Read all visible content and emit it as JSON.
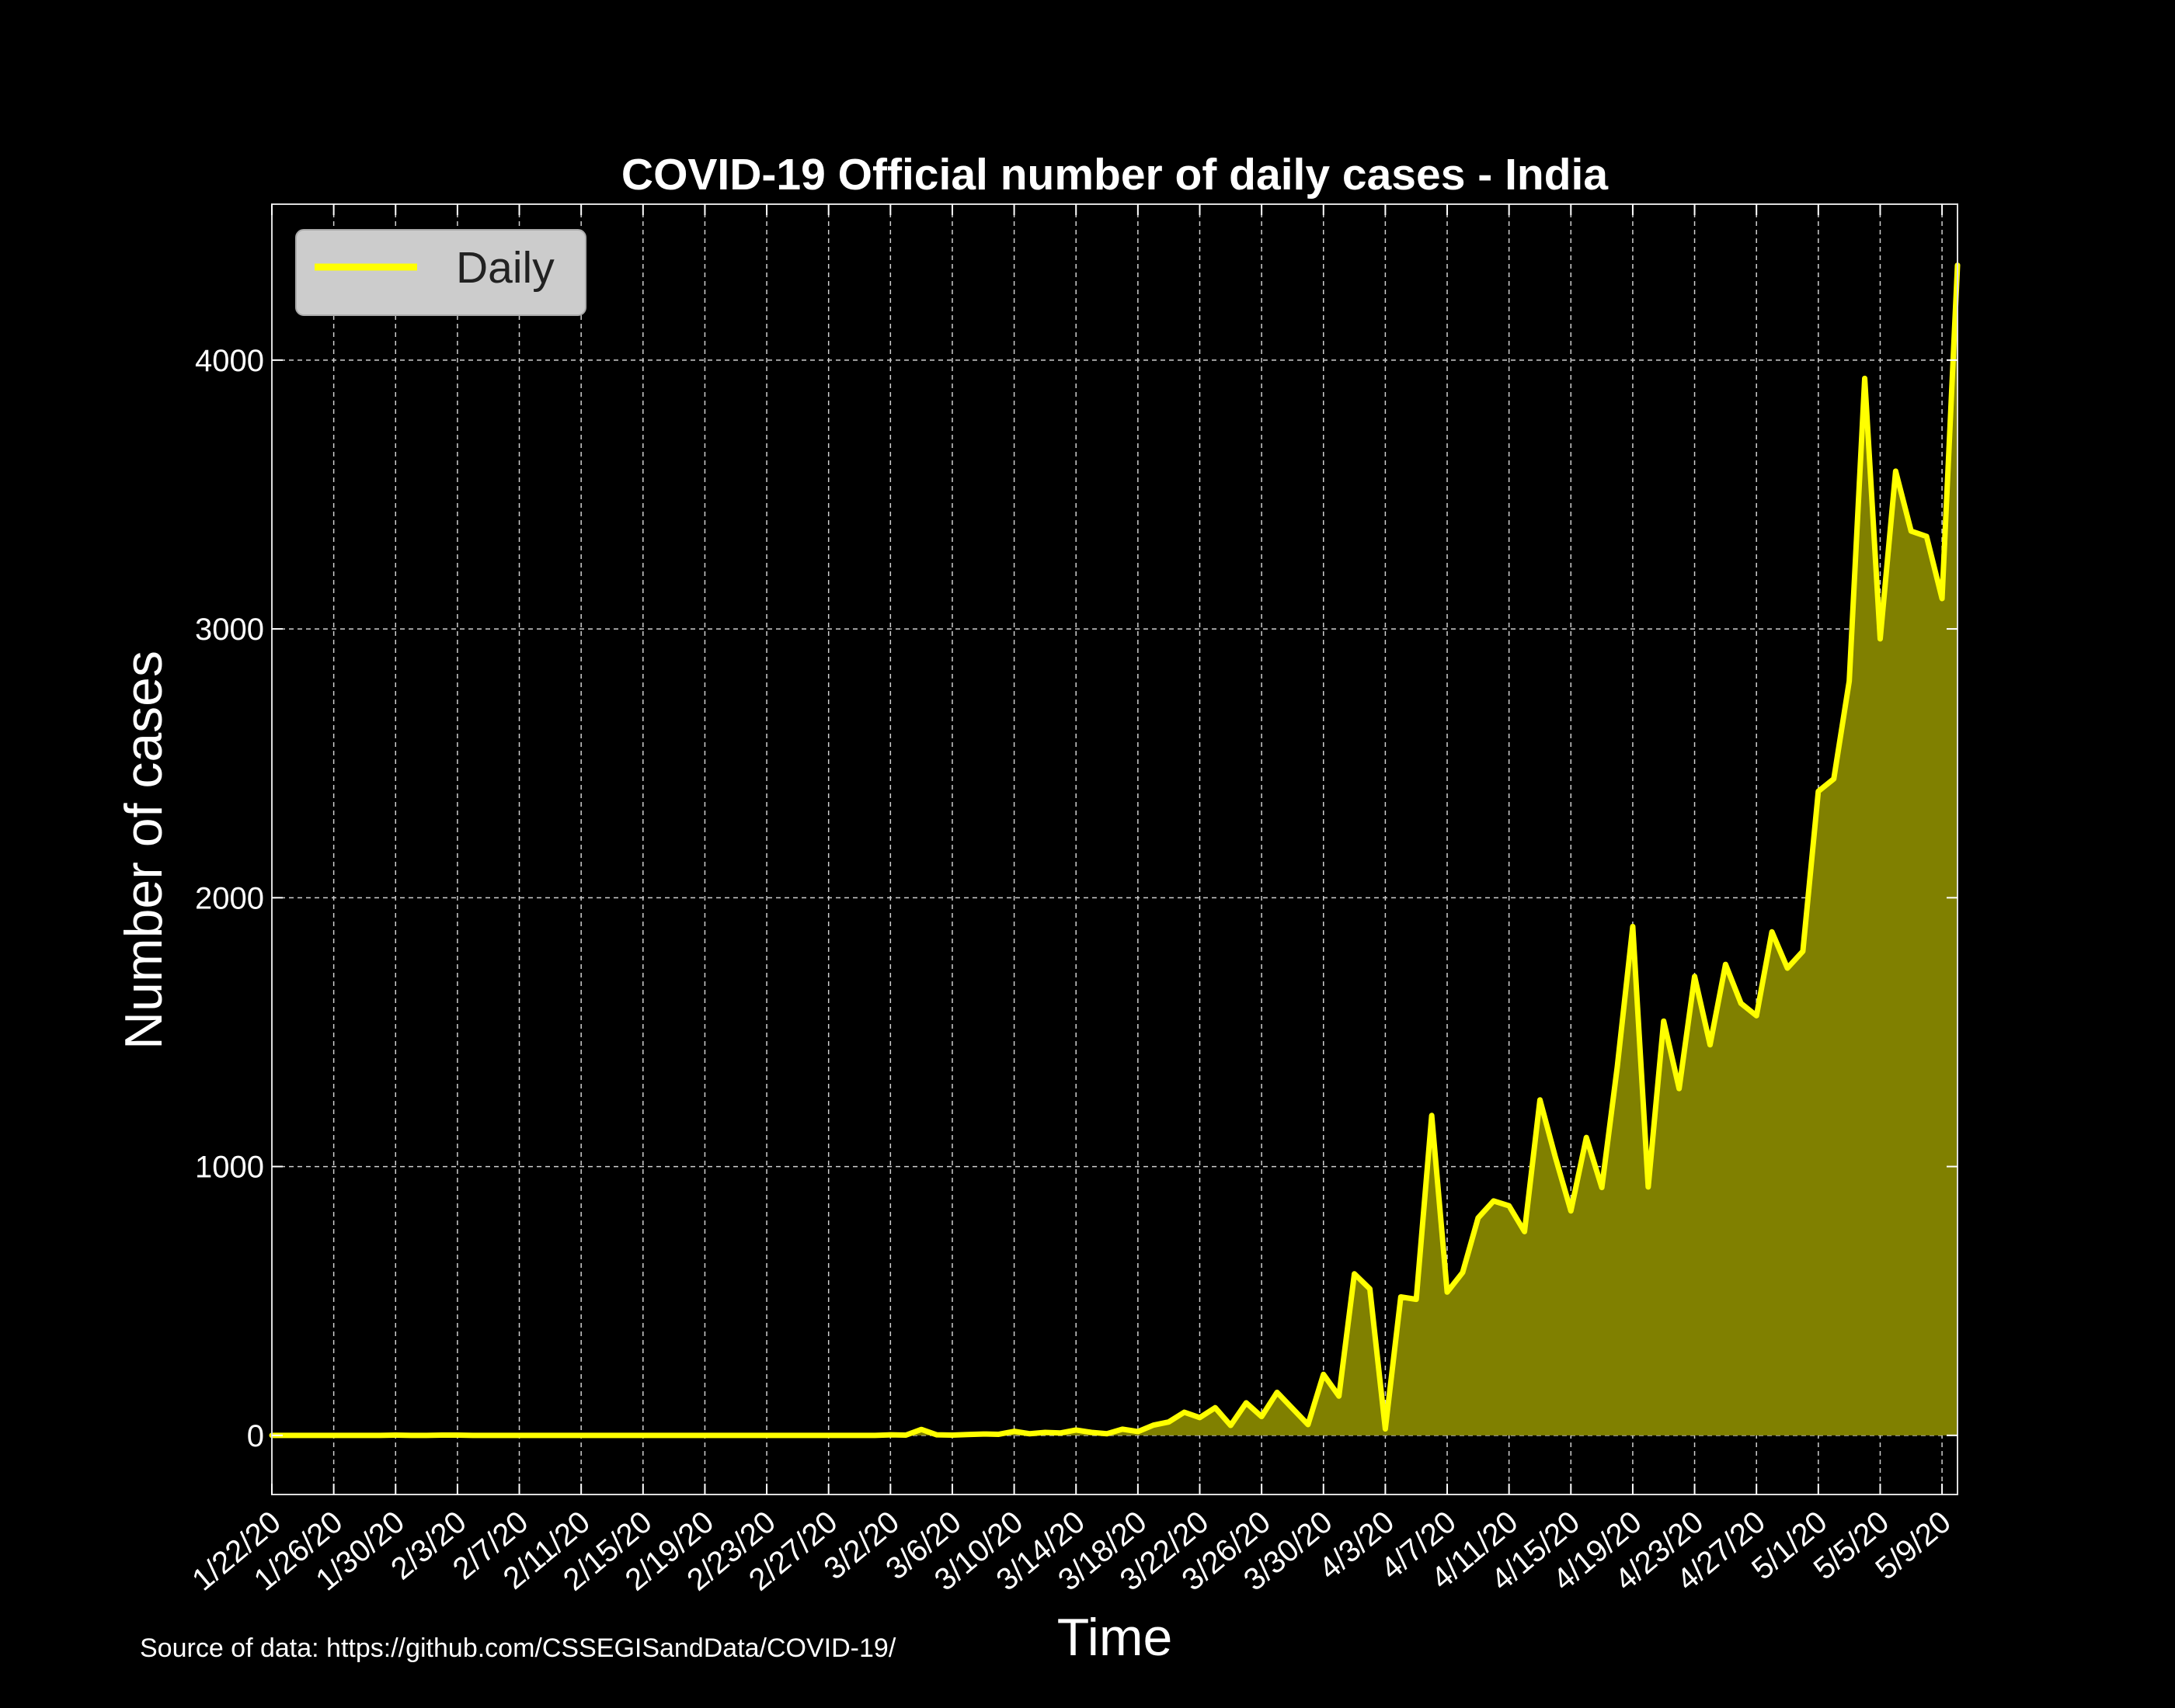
{
  "chart_data": {
    "type": "area",
    "title": "COVID-19 Official number of daily cases - India",
    "xlabel": "Time",
    "ylabel": "Number of cases",
    "source_note": "Source of data: https://github.com/CSSEGISandData/COVID-19/",
    "x_range": [
      "1/22/20",
      "5/9/20"
    ],
    "ylim": [
      -220,
      4580
    ],
    "y_ticks": [
      0,
      1000,
      2000,
      3000,
      4000
    ],
    "x_tick_labels": [
      "1/22/20",
      "1/26/20",
      "1/30/20",
      "2/3/20",
      "2/7/20",
      "2/11/20",
      "2/15/20",
      "2/19/20",
      "2/23/20",
      "2/27/20",
      "3/2/20",
      "3/6/20",
      "3/10/20",
      "3/14/20",
      "3/18/20",
      "3/22/20",
      "3/26/20",
      "3/30/20",
      "4/3/20",
      "4/7/20",
      "4/11/20",
      "4/15/20",
      "4/19/20",
      "4/23/20",
      "4/27/20",
      "5/1/20",
      "5/5/20",
      "5/9/20"
    ],
    "grid": true,
    "legend_position": "top-left",
    "series": [
      {
        "name": "Daily",
        "color": "#ffff00",
        "fill_color": "#808000",
        "points": [
          [
            "1/22/20",
            0
          ],
          [
            "1/23/20",
            0
          ],
          [
            "1/24/20",
            0
          ],
          [
            "1/25/20",
            0
          ],
          [
            "1/26/20",
            0
          ],
          [
            "1/27/20",
            0
          ],
          [
            "1/28/20",
            0
          ],
          [
            "1/29/20",
            0
          ],
          [
            "1/30/20",
            1
          ],
          [
            "1/31/20",
            0
          ],
          [
            "2/1/20",
            0
          ],
          [
            "2/2/20",
            1
          ],
          [
            "2/3/20",
            1
          ],
          [
            "2/4/20",
            0
          ],
          [
            "2/5/20",
            0
          ],
          [
            "2/6/20",
            0
          ],
          [
            "2/7/20",
            0
          ],
          [
            "2/8/20",
            0
          ],
          [
            "2/9/20",
            0
          ],
          [
            "2/10/20",
            0
          ],
          [
            "2/11/20",
            0
          ],
          [
            "2/12/20",
            0
          ],
          [
            "2/13/20",
            0
          ],
          [
            "2/14/20",
            0
          ],
          [
            "2/15/20",
            0
          ],
          [
            "2/16/20",
            0
          ],
          [
            "2/17/20",
            0
          ],
          [
            "2/18/20",
            0
          ],
          [
            "2/19/20",
            0
          ],
          [
            "2/20/20",
            0
          ],
          [
            "2/21/20",
            0
          ],
          [
            "2/22/20",
            0
          ],
          [
            "2/23/20",
            0
          ],
          [
            "2/24/20",
            0
          ],
          [
            "2/25/20",
            0
          ],
          [
            "2/26/20",
            0
          ],
          [
            "2/27/20",
            0
          ],
          [
            "2/28/20",
            0
          ],
          [
            "2/29/20",
            0
          ],
          [
            "3/1/20",
            0
          ],
          [
            "3/2/20",
            2
          ],
          [
            "3/3/20",
            1
          ],
          [
            "3/4/20",
            22
          ],
          [
            "3/5/20",
            2
          ],
          [
            "3/6/20",
            1
          ],
          [
            "3/7/20",
            3
          ],
          [
            "3/8/20",
            5
          ],
          [
            "3/9/20",
            4
          ],
          [
            "3/10/20",
            15
          ],
          [
            "3/11/20",
            6
          ],
          [
            "3/12/20",
            11
          ],
          [
            "3/13/20",
            9
          ],
          [
            "3/14/20",
            20
          ],
          [
            "3/15/20",
            11
          ],
          [
            "3/16/20",
            6
          ],
          [
            "3/17/20",
            23
          ],
          [
            "3/18/20",
            14
          ],
          [
            "3/19/20",
            38
          ],
          [
            "3/20/20",
            50
          ],
          [
            "3/21/20",
            86
          ],
          [
            "3/22/20",
            66
          ],
          [
            "3/23/20",
            103
          ],
          [
            "3/24/20",
            37
          ],
          [
            "3/25/20",
            121
          ],
          [
            "3/26/20",
            70
          ],
          [
            "3/27/20",
            160
          ],
          [
            "3/28/20",
            100
          ],
          [
            "3/29/20",
            40
          ],
          [
            "3/30/20",
            227
          ],
          [
            "3/31/20",
            146
          ],
          [
            "4/1/20",
            601
          ],
          [
            "4/2/20",
            545
          ],
          [
            "4/3/20",
            24
          ],
          [
            "4/4/20",
            515
          ],
          [
            "4/5/20",
            506
          ],
          [
            "4/6/20",
            1190
          ],
          [
            "4/7/20",
            533
          ],
          [
            "4/8/20",
            606
          ],
          [
            "4/9/20",
            809
          ],
          [
            "4/10/20",
            872
          ],
          [
            "4/11/20",
            854
          ],
          [
            "4/12/20",
            758
          ],
          [
            "4/13/20",
            1248
          ],
          [
            "4/14/20",
            1034
          ],
          [
            "4/15/20",
            835
          ],
          [
            "4/16/20",
            1108
          ],
          [
            "4/17/20",
            922
          ],
          [
            "4/18/20",
            1371
          ],
          [
            "4/19/20",
            1893
          ],
          [
            "4/20/20",
            924
          ],
          [
            "4/21/20",
            1541
          ],
          [
            "4/22/20",
            1290
          ],
          [
            "4/23/20",
            1707
          ],
          [
            "4/24/20",
            1453
          ],
          [
            "4/25/20",
            1752
          ],
          [
            "4/26/20",
            1607
          ],
          [
            "4/27/20",
            1561
          ],
          [
            "4/28/20",
            1873
          ],
          [
            "4/29/20",
            1738
          ],
          [
            "4/30/20",
            1801
          ],
          [
            "5/1/20",
            2396
          ],
          [
            "5/2/20",
            2442
          ],
          [
            "5/3/20",
            2806
          ],
          [
            "5/4/20",
            3932
          ],
          [
            "5/5/20",
            2963
          ],
          [
            "5/6/20",
            3587
          ],
          [
            "5/7/20",
            3364
          ],
          [
            "5/8/20",
            3344
          ],
          [
            "5/9/20",
            3113
          ],
          [
            "5/10/20",
            4353
          ]
        ]
      }
    ]
  }
}
